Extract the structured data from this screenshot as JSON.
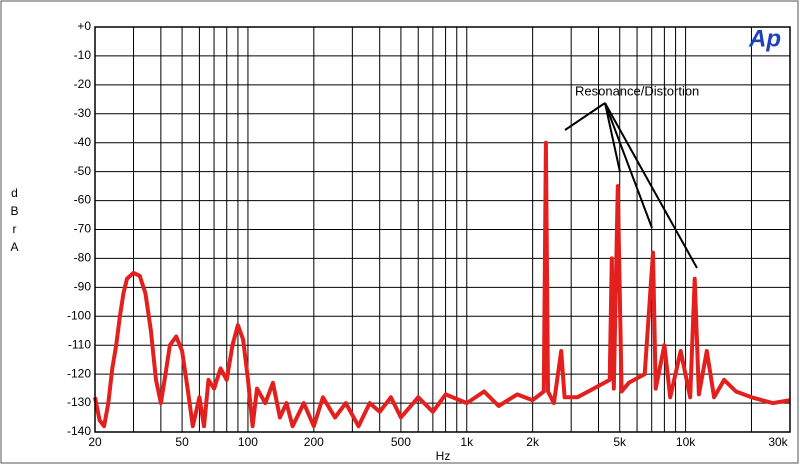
{
  "chart_data": {
    "type": "line",
    "ylabel": "dBrA",
    "xlabel": "Hz",
    "annotation": "Resonance/Distortion",
    "logo": "Ap",
    "xscale": "log",
    "grid": true,
    "color": "#e3201e",
    "xlim": [
      20,
      30000
    ],
    "ylim": [
      -140,
      0
    ],
    "xticks": [
      20,
      50,
      100,
      200,
      500,
      {
        "value": 1000,
        "label": "1k"
      },
      {
        "value": 2000,
        "label": "2k"
      },
      {
        "value": 5000,
        "label": "5k"
      },
      {
        "value": 10000,
        "label": "10k"
      },
      {
        "value": 30000,
        "label": "30k"
      }
    ],
    "xminorticks": [
      30,
      40,
      60,
      70,
      80,
      90,
      300,
      400,
      600,
      700,
      800,
      900,
      3000,
      4000,
      6000,
      7000,
      8000,
      9000,
      20000
    ],
    "yticks": [
      {
        "value": 0,
        "label": "+0"
      },
      -10,
      -20,
      -30,
      -40,
      -50,
      -60,
      -70,
      -80,
      -90,
      -100,
      -110,
      -120,
      -130,
      -140
    ],
    "x": [
      20,
      21,
      22,
      23,
      24,
      25,
      26,
      27,
      28,
      30,
      32,
      34,
      36,
      38,
      40,
      42,
      44,
      47,
      50,
      53,
      56,
      60,
      63,
      66,
      70,
      75,
      80,
      85,
      90,
      95,
      100,
      105,
      110,
      120,
      130,
      140,
      150,
      160,
      180,
      200,
      220,
      250,
      280,
      320,
      360,
      400,
      450,
      500,
      600,
      700,
      800,
      1000,
      1200,
      1400,
      1700,
      2000,
      2250,
      2300,
      2350,
      2500,
      2700,
      2800,
      3200,
      3800,
      4500,
      4600,
      4700,
      4900,
      5100,
      5500,
      6500,
      7100,
      7300,
      8000,
      8500,
      9500,
      10500,
      11000,
      11500,
      12500,
      13500,
      15000,
      17000,
      20000,
      25000,
      30000
    ],
    "values": [
      -128,
      -136,
      -138,
      -130,
      -118,
      -110,
      -100,
      -92,
      -87,
      -85,
      -86,
      -92,
      -105,
      -122,
      -130,
      -120,
      -110,
      -107,
      -112,
      -125,
      -138,
      -128,
      -138,
      -122,
      -125,
      -118,
      -122,
      -110,
      -103,
      -108,
      -122,
      -138,
      -125,
      -130,
      -123,
      -135,
      -130,
      -138,
      -130,
      -138,
      -128,
      -135,
      -130,
      -138,
      -130,
      -133,
      -128,
      -135,
      -128,
      -133,
      -127,
      -130,
      -126,
      -131,
      -127,
      -129,
      -126,
      -40,
      -126,
      -130,
      -112,
      -128,
      -128,
      -125,
      -122,
      -80,
      -125,
      -55,
      -126,
      -123,
      -120,
      -78,
      -125,
      -110,
      -128,
      -112,
      -128,
      -87,
      -127,
      -112,
      -128,
      -122,
      -126,
      -128,
      -130,
      -129
    ]
  }
}
